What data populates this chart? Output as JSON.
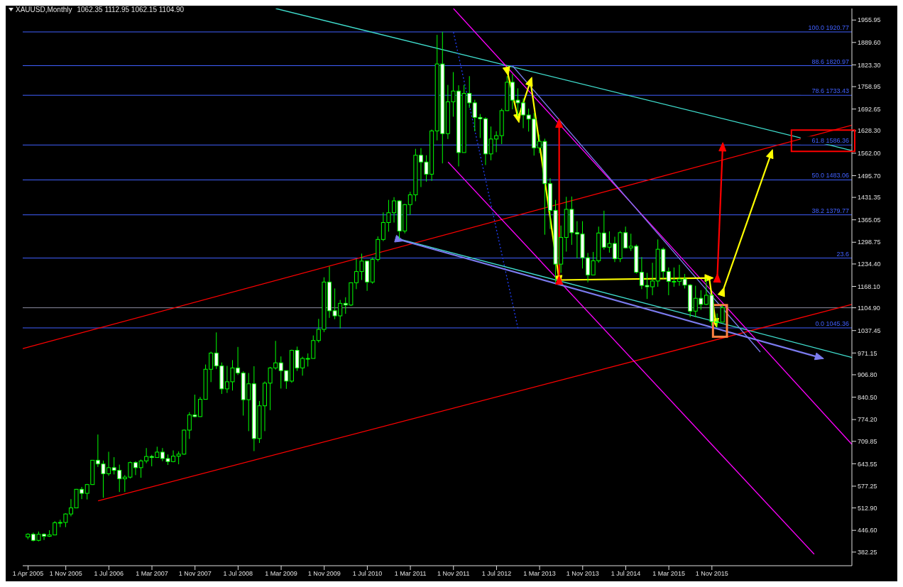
{
  "chart_data": {
    "type": "candlestick",
    "title": "XAUUSD,Monthly",
    "subtitle": "1062.35 1112.95 1062.15 1104.90",
    "color": "#00ff00",
    "x": [
      "2005-04",
      "2005-05",
      "2005-06",
      "2005-07",
      "2005-08",
      "2005-09",
      "2005-10",
      "2005-11",
      "2005-12",
      "2006-01",
      "2006-02",
      "2006-03",
      "2006-04",
      "2006-05",
      "2006-06",
      "2006-07",
      "2006-08",
      "2006-09",
      "2006-10",
      "2006-11",
      "2006-12",
      "2007-01",
      "2007-02",
      "2007-03",
      "2007-04",
      "2007-05",
      "2007-06",
      "2007-07",
      "2007-08",
      "2007-09",
      "2007-10",
      "2007-11",
      "2007-12",
      "2008-01",
      "2008-02",
      "2008-03",
      "2008-04",
      "2008-05",
      "2008-06",
      "2008-07",
      "2008-08",
      "2008-09",
      "2008-10",
      "2008-11",
      "2008-12",
      "2009-01",
      "2009-02",
      "2009-03",
      "2009-04",
      "2009-05",
      "2009-06",
      "2009-07",
      "2009-08",
      "2009-09",
      "2009-10",
      "2009-11",
      "2009-12",
      "2010-01",
      "2010-02",
      "2010-03",
      "2010-04",
      "2010-05",
      "2010-06",
      "2010-07",
      "2010-08",
      "2010-09",
      "2010-10",
      "2010-11",
      "2010-12",
      "2011-01",
      "2011-02",
      "2011-03",
      "2011-04",
      "2011-05",
      "2011-06",
      "2011-07",
      "2011-08",
      "2011-09",
      "2011-10",
      "2011-11",
      "2011-12",
      "2012-01",
      "2012-02",
      "2012-03",
      "2012-04",
      "2012-05",
      "2012-06",
      "2012-07",
      "2012-08",
      "2012-09",
      "2012-10",
      "2012-11",
      "2012-12",
      "2013-01",
      "2013-02",
      "2013-03",
      "2013-04",
      "2013-05",
      "2013-06",
      "2013-07",
      "2013-08",
      "2013-09",
      "2013-10",
      "2013-11",
      "2013-12",
      "2014-01",
      "2014-02",
      "2014-03",
      "2014-04",
      "2014-05",
      "2014-06",
      "2014-07",
      "2014-08",
      "2014-09",
      "2014-10",
      "2014-11",
      "2014-12",
      "2015-01",
      "2015-02",
      "2015-03",
      "2015-04",
      "2015-05",
      "2015-06",
      "2015-07",
      "2015-08",
      "2015-09",
      "2015-10",
      "2015-11",
      "2015-12",
      "2016-01"
    ],
    "ohlc": [
      [
        427,
        438,
        420,
        435
      ],
      [
        435,
        440,
        414,
        417
      ],
      [
        417,
        443,
        414,
        435
      ],
      [
        435,
        438,
        418,
        429
      ],
      [
        429,
        447,
        427,
        433
      ],
      [
        433,
        474,
        432,
        469
      ],
      [
        469,
        478,
        456,
        470
      ],
      [
        470,
        497,
        456,
        495
      ],
      [
        495,
        539,
        488,
        513
      ],
      [
        513,
        569,
        512,
        568
      ],
      [
        568,
        575,
        539,
        556
      ],
      [
        556,
        584,
        538,
        582
      ],
      [
        582,
        654,
        581,
        654
      ],
      [
        654,
        730,
        634,
        643
      ],
      [
        643,
        653,
        543,
        614
      ],
      [
        614,
        679,
        608,
        632
      ],
      [
        632,
        663,
        612,
        624
      ],
      [
        624,
        641,
        560,
        599
      ],
      [
        599,
        610,
        560,
        604
      ],
      [
        604,
        650,
        600,
        647
      ],
      [
        647,
        651,
        610,
        632
      ],
      [
        632,
        656,
        602,
        652
      ],
      [
        652,
        690,
        645,
        665
      ],
      [
        665,
        670,
        636,
        662
      ],
      [
        662,
        694,
        662,
        678
      ],
      [
        678,
        690,
        651,
        659
      ],
      [
        659,
        671,
        640,
        650
      ],
      [
        650,
        683,
        648,
        666
      ],
      [
        666,
        680,
        642,
        672
      ],
      [
        672,
        745,
        670,
        743
      ],
      [
        743,
        796,
        717,
        788
      ],
      [
        788,
        848,
        781,
        783
      ],
      [
        783,
        841,
        782,
        834
      ],
      [
        834,
        937,
        834,
        923
      ],
      [
        923,
        975,
        885,
        971
      ],
      [
        971,
        1032,
        924,
        933
      ],
      [
        933,
        943,
        850,
        865
      ],
      [
        865,
        933,
        853,
        886
      ],
      [
        886,
        950,
        860,
        927
      ],
      [
        927,
        989,
        906,
        912
      ],
      [
        912,
        917,
        786,
        833
      ],
      [
        833,
        912,
        740,
        880
      ],
      [
        880,
        932,
        681,
        718
      ],
      [
        718,
        829,
        705,
        815
      ],
      [
        815,
        887,
        740,
        882
      ],
      [
        882,
        930,
        802,
        927
      ],
      [
        927,
        1007,
        922,
        942
      ],
      [
        942,
        961,
        866,
        919
      ],
      [
        919,
        919,
        865,
        888
      ],
      [
        888,
        981,
        883,
        979
      ],
      [
        979,
        990,
        918,
        927
      ],
      [
        927,
        960,
        904,
        955
      ],
      [
        955,
        970,
        931,
        955
      ],
      [
        955,
        1023,
        955,
        1008
      ],
      [
        1008,
        1072,
        1002,
        1041
      ],
      [
        1041,
        1195,
        1033,
        1181
      ],
      [
        1181,
        1227,
        1075,
        1096
      ],
      [
        1096,
        1162,
        1071,
        1081
      ],
      [
        1081,
        1128,
        1044,
        1118
      ],
      [
        1118,
        1136,
        1087,
        1113
      ],
      [
        1113,
        1180,
        1110,
        1179
      ],
      [
        1179,
        1249,
        1160,
        1212
      ],
      [
        1212,
        1265,
        1187,
        1243
      ],
      [
        1243,
        1244,
        1155,
        1181
      ],
      [
        1181,
        1254,
        1176,
        1248
      ],
      [
        1248,
        1316,
        1242,
        1307
      ],
      [
        1307,
        1387,
        1302,
        1357
      ],
      [
        1357,
        1424,
        1330,
        1386
      ],
      [
        1386,
        1432,
        1357,
        1421
      ],
      [
        1421,
        1423,
        1309,
        1332
      ],
      [
        1332,
        1412,
        1325,
        1410
      ],
      [
        1410,
        1448,
        1380,
        1439
      ],
      [
        1439,
        1575,
        1420,
        1556
      ],
      [
        1556,
        1577,
        1462,
        1536
      ],
      [
        1536,
        1556,
        1478,
        1500
      ],
      [
        1500,
        1632,
        1480,
        1628
      ],
      [
        1628,
        1912,
        1600,
        1826
      ],
      [
        1826,
        1921,
        1532,
        1620
      ],
      [
        1620,
        1764,
        1604,
        1714
      ],
      [
        1714,
        1802,
        1670,
        1746
      ],
      [
        1746,
        1763,
        1523,
        1564
      ],
      [
        1564,
        1764,
        1564,
        1739
      ],
      [
        1739,
        1790,
        1696,
        1711
      ],
      [
        1711,
        1720,
        1627,
        1668
      ],
      [
        1668,
        1678,
        1607,
        1664
      ],
      [
        1664,
        1668,
        1527,
        1560
      ],
      [
        1560,
        1641,
        1541,
        1604
      ],
      [
        1604,
        1627,
        1565,
        1614
      ],
      [
        1614,
        1694,
        1589,
        1688
      ],
      [
        1688,
        1790,
        1687,
        1772
      ],
      [
        1772,
        1796,
        1692,
        1719
      ],
      [
        1719,
        1754,
        1672,
        1711
      ],
      [
        1711,
        1724,
        1636,
        1675
      ],
      [
        1675,
        1694,
        1626,
        1663
      ],
      [
        1663,
        1681,
        1555,
        1578
      ],
      [
        1578,
        1617,
        1562,
        1597
      ],
      [
        1597,
        1605,
        1321,
        1472
      ],
      [
        1472,
        1488,
        1338,
        1393
      ],
      [
        1393,
        1424,
        1180,
        1234
      ],
      [
        1234,
        1348,
        1208,
        1313
      ],
      [
        1313,
        1433,
        1271,
        1396
      ],
      [
        1396,
        1434,
        1291,
        1327
      ],
      [
        1327,
        1361,
        1251,
        1323
      ],
      [
        1323,
        1361,
        1221,
        1253
      ],
      [
        1253,
        1267,
        1180,
        1202
      ],
      [
        1202,
        1270,
        1202,
        1244
      ],
      [
        1244,
        1345,
        1238,
        1326
      ],
      [
        1326,
        1392,
        1277,
        1284
      ],
      [
        1284,
        1331,
        1268,
        1295
      ],
      [
        1295,
        1315,
        1240,
        1250
      ],
      [
        1250,
        1332,
        1240,
        1327
      ],
      [
        1327,
        1345,
        1280,
        1282
      ],
      [
        1282,
        1324,
        1273,
        1287
      ],
      [
        1287,
        1292,
        1206,
        1210
      ],
      [
        1210,
        1255,
        1160,
        1171
      ],
      [
        1171,
        1208,
        1131,
        1167
      ],
      [
        1167,
        1238,
        1142,
        1184
      ],
      [
        1184,
        1307,
        1167,
        1278
      ],
      [
        1278,
        1283,
        1191,
        1212
      ],
      [
        1212,
        1224,
        1142,
        1183
      ],
      [
        1183,
        1224,
        1167,
        1183
      ],
      [
        1183,
        1232,
        1170,
        1190
      ],
      [
        1190,
        1205,
        1162,
        1172
      ],
      [
        1172,
        1175,
        1077,
        1095
      ],
      [
        1095,
        1170,
        1077,
        1133
      ],
      [
        1133,
        1157,
        1099,
        1115
      ],
      [
        1115,
        1191,
        1113,
        1142
      ],
      [
        1142,
        1142,
        1052,
        1064
      ],
      [
        1064,
        1088,
        1046,
        1061
      ],
      [
        1062.35,
        1112.95,
        1062.15,
        1104.9
      ]
    ],
    "series": [
      {
        "type": "line",
        "color": "#ff0000",
        "x": [
          "2006-05",
          "2018-01"
        ],
        "values": [
          534,
          1115
        ]
      },
      {
        "type": "line",
        "color": "#ff0000",
        "x": [
          "2005-03",
          "2018-01"
        ],
        "values": [
          984,
          1645
        ]
      },
      {
        "type": "line",
        "color": "#40e0d0",
        "x": [
          "2009-02",
          "2018-01"
        ],
        "values": [
          1990,
          1570
        ]
      },
      {
        "type": "line",
        "color": "#40e0d0",
        "x": [
          "2011-01",
          "2018-01"
        ],
        "values": [
          1308,
          958
        ]
      },
      {
        "type": "line",
        "color": "#ff00ff",
        "x": [
          "2011-11",
          "2018-01"
        ],
        "values": [
          1990,
          701
        ]
      },
      {
        "type": "line",
        "color": "#ff00ff",
        "x": [
          "2011-10",
          "2017-06"
        ],
        "values": [
          1536,
          376
        ]
      },
      {
        "type": "line",
        "color": "#2040ff",
        "line_style": "dotted",
        "x": [
          "2011-11",
          "2012-11"
        ],
        "values": [
          1920,
          1043
        ]
      },
      {
        "type": "line",
        "color": "#7b7bef",
        "x": [
          "2012-10",
          "2016-08"
        ],
        "values": [
          1820,
          974
        ]
      },
      {
        "type": "line",
        "color": "#7b7bef",
        "marker": "triangle",
        "x": [
          "2011-01",
          "2017-07"
        ],
        "values": [
          1306,
          958
        ]
      },
      {
        "type": "line",
        "color": "#ffff00",
        "marker": "triangle",
        "x": [
          "2012-09",
          "2012-11",
          "2013-01-10",
          "2013-06-20",
          "2015-10-16",
          "2015-11-23"
        ],
        "values": [
          1804,
          1665,
          1775,
          1187,
          1193,
          1060
        ]
      },
      {
        "type": "line",
        "color": "#ffff00",
        "marker": "triangle",
        "x": [
          "2016-01",
          "2016-10"
        ],
        "values": [
          1153,
          1561
        ]
      },
      {
        "type": "line",
        "color": "#ff0000",
        "marker": "triangle",
        "x": [
          "2013-06-20",
          "2013-06-20"
        ],
        "values": [
          1187,
          1651
        ]
      },
      {
        "type": "line",
        "color": "#ff0000",
        "marker": "triangle",
        "x": [
          "2015-12",
          "2016-01"
        ],
        "values": [
          1193,
          1581
        ]
      }
    ],
    "ref_lines": [
      {
        "axis": "y",
        "value": 1920.77,
        "label": "100.0 1920.77",
        "color": "#4060ff"
      },
      {
        "axis": "y",
        "value": 1820.97,
        "label": "88.6 1820.97",
        "color": "#4060ff"
      },
      {
        "axis": "y",
        "value": 1733.43,
        "label": "78.6 1733.43",
        "color": "#4060ff"
      },
      {
        "axis": "y",
        "value": 1586.36,
        "label": "61.8 1586.36",
        "color": "#4060ff"
      },
      {
        "axis": "y",
        "value": 1483.06,
        "label": "50.0 1483.06",
        "color": "#4060ff"
      },
      {
        "axis": "y",
        "value": 1379.77,
        "label": "38.2 1379.77",
        "color": "#4060ff"
      },
      {
        "axis": "y",
        "value": 1251.96,
        "color": "#4060ff"
      },
      {
        "axis": "y",
        "value": 1045.36,
        "label": "0.0 1045.36",
        "color": "#4060ff"
      },
      {
        "axis": "y",
        "value": 1104.9,
        "color": "#8c8ca0"
      }
    ],
    "annotations": [
      {
        "text": "23.6",
        "x": "2018-01",
        "y": 1251.96
      }
    ],
    "xlim": [
      "2005-03",
      "2018-01"
    ],
    "xticks": [
      {
        "value": "2005-04",
        "label": "1 Apr 2005"
      },
      {
        "value": "2005-11",
        "label": "1 Nov 2005"
      },
      {
        "value": "2006-07",
        "label": "1 Jul 2006"
      },
      {
        "value": "2007-03",
        "label": "1 Mar 2007"
      },
      {
        "value": "2007-11",
        "label": "1 Nov 2007"
      },
      {
        "value": "2008-07",
        "label": "1 Jul 2008"
      },
      {
        "value": "2009-03",
        "label": "1 Mar 2009"
      },
      {
        "value": "2009-11",
        "label": "1 Nov 2009"
      },
      {
        "value": "2010-07",
        "label": "1 Jul 2010"
      },
      {
        "value": "2011-03",
        "label": "1 Mar 2011"
      },
      {
        "value": "2011-11",
        "label": "1 Nov 2011"
      },
      {
        "value": "2012-07",
        "label": "1 Jul 2012"
      },
      {
        "value": "2013-03",
        "label": "1 Mar 2013"
      },
      {
        "value": "2013-11",
        "label": "1 Nov 2013"
      },
      {
        "value": "2014-07",
        "label": "1 Jul 2014"
      },
      {
        "value": "2015-03",
        "label": "1 Mar 2015"
      },
      {
        "value": "2015-11",
        "label": "1 Nov 2015"
      }
    ],
    "ylim": [
      342,
      1990
    ],
    "yticks": [
      1955.95,
      {
        "value": 1889.6,
        "label": "1889.60"
      },
      {
        "value": 1823.3,
        "label": "1823.30"
      },
      1758.95,
      1692.65,
      {
        "value": 1628.3,
        "label": "1628.30"
      },
      {
        "value": 1562,
        "label": "1562.00"
      },
      {
        "value": 1495.7,
        "label": "1495.70"
      },
      1431.35,
      1365.05,
      1298.75,
      {
        "value": 1234.4,
        "label": "1234.40"
      },
      {
        "value": 1168.1,
        "label": "1168.10"
      },
      {
        "value": 1104.9,
        "label": "1104.90"
      },
      1037.45,
      971.15,
      {
        "value": 906.8,
        "label": "906.80"
      },
      {
        "value": 840.5,
        "label": "840.50"
      },
      {
        "value": 774.2,
        "label": "774.20"
      },
      709.85,
      643.55,
      577.25,
      {
        "value": 512.9,
        "label": "512.90"
      },
      {
        "value": 446.6,
        "label": "446.60"
      },
      382.25
    ]
  }
}
